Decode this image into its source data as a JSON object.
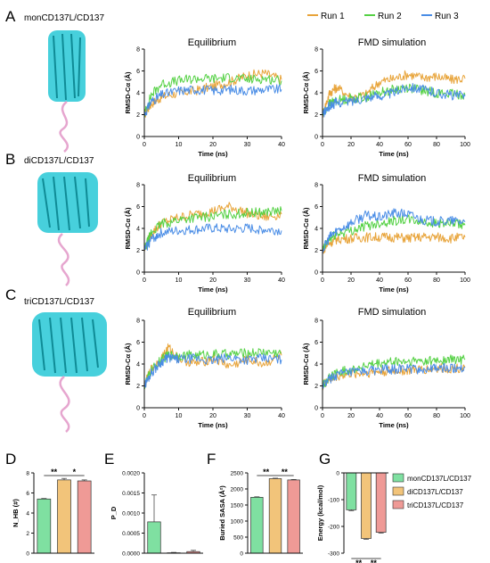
{
  "colors": {
    "run1": "#e8a43a",
    "run2": "#55d145",
    "run3": "#4a8de6",
    "mon": "#7fe0a1",
    "di": "#f2c47a",
    "tri": "#ef9a96",
    "protein": "#27c8d6",
    "loop": "#e6a6cf"
  },
  "legend_top": [
    "Run 1",
    "Run 2",
    "Run 3"
  ],
  "legend_bottom": [
    "monCD137L/CD137",
    "diCD137L/CD137",
    "triCD137L/CD137"
  ],
  "rows": [
    {
      "letter": "A",
      "label": "monCD137L/CD137",
      "eq_title": "Equilibrium",
      "fmd_title": "FMD simulation"
    },
    {
      "letter": "B",
      "label": "diCD137L/CD137",
      "eq_title": "Equilibrium",
      "fmd_title": "FMD simulation"
    },
    {
      "letter": "C",
      "label": "triCD137L/CD137",
      "eq_title": "Equilibrium",
      "fmd_title": "FMD simulation"
    }
  ],
  "chart_data": [
    {
      "id": "A-eq",
      "type": "line",
      "xlabel": "Time (ns)",
      "ylabel": "RMSD-Cα (Å)",
      "xlim": [
        0,
        40
      ],
      "ylim": [
        0,
        8
      ],
      "xticks": [
        0,
        10,
        20,
        30,
        40
      ],
      "yticks": [
        0,
        2,
        4,
        6,
        8
      ],
      "series": [
        {
          "name": "Run 1",
          "x": [
            0,
            2,
            5,
            10,
            15,
            20,
            25,
            30,
            35,
            40
          ],
          "y": [
            2.0,
            3.0,
            3.6,
            4.0,
            4.2,
            4.6,
            5.0,
            5.6,
            5.8,
            5.2
          ]
        },
        {
          "name": "Run 2",
          "x": [
            0,
            2,
            5,
            10,
            15,
            20,
            25,
            30,
            35,
            40
          ],
          "y": [
            2.0,
            3.8,
            4.8,
            5.1,
            5.3,
            5.3,
            5.4,
            5.2,
            5.3,
            5.1
          ]
        },
        {
          "name": "Run 3",
          "x": [
            0,
            2,
            5,
            10,
            15,
            20,
            25,
            30,
            35,
            40
          ],
          "y": [
            2.0,
            3.2,
            3.8,
            4.2,
            4.3,
            4.2,
            4.3,
            4.2,
            4.3,
            4.3
          ]
        }
      ]
    },
    {
      "id": "A-fmd",
      "type": "line",
      "xlabel": "Time (ns)",
      "ylabel": "RMSD-Cα (Å)",
      "xlim": [
        0,
        100
      ],
      "ylim": [
        0,
        8
      ],
      "xticks": [
        0,
        20,
        40,
        60,
        80,
        100
      ],
      "yticks": [
        0,
        2,
        4,
        6,
        8
      ],
      "series": [
        {
          "name": "Run 1",
          "x": [
            0,
            5,
            10,
            20,
            30,
            40,
            50,
            60,
            70,
            80,
            90,
            100
          ],
          "y": [
            2.0,
            4.0,
            4.5,
            3.6,
            3.8,
            5.0,
            5.3,
            5.7,
            5.4,
            5.5,
            5.2,
            5.3
          ]
        },
        {
          "name": "Run 2",
          "x": [
            0,
            5,
            10,
            20,
            30,
            40,
            50,
            60,
            70,
            80,
            90,
            100
          ],
          "y": [
            2.0,
            3.0,
            3.3,
            3.5,
            3.6,
            4.0,
            4.3,
            4.5,
            4.2,
            4.0,
            3.9,
            3.8
          ]
        },
        {
          "name": "Run 3",
          "x": [
            0,
            5,
            10,
            20,
            30,
            40,
            50,
            60,
            70,
            80,
            90,
            100
          ],
          "y": [
            2.0,
            2.8,
            3.1,
            3.2,
            3.6,
            3.7,
            4.0,
            4.6,
            4.3,
            4.0,
            3.8,
            3.7
          ]
        }
      ]
    },
    {
      "id": "B-eq",
      "type": "line",
      "xlabel": "Time (ns)",
      "ylabel": "RMSD-Cα (Å)",
      "xlim": [
        0,
        40
      ],
      "ylim": [
        0,
        8
      ],
      "xticks": [
        0,
        10,
        20,
        30,
        40
      ],
      "yticks": [
        0,
        2,
        4,
        6,
        8
      ],
      "series": [
        {
          "name": "Run 1",
          "x": [
            0,
            2,
            5,
            10,
            15,
            20,
            25,
            30,
            35,
            40
          ],
          "y": [
            2.0,
            3.5,
            4.5,
            5.0,
            5.3,
            5.6,
            6.0,
            5.4,
            5.0,
            5.3
          ]
        },
        {
          "name": "Run 2",
          "x": [
            0,
            2,
            5,
            10,
            15,
            20,
            25,
            30,
            35,
            40
          ],
          "y": [
            2.0,
            3.6,
            4.4,
            4.8,
            5.0,
            5.1,
            5.3,
            5.4,
            5.5,
            5.6
          ]
        },
        {
          "name": "Run 3",
          "x": [
            0,
            2,
            5,
            10,
            15,
            20,
            25,
            30,
            35,
            40
          ],
          "y": [
            2.0,
            3.0,
            3.6,
            3.8,
            3.9,
            4.0,
            3.9,
            4.0,
            3.9,
            3.8
          ]
        }
      ]
    },
    {
      "id": "B-fmd",
      "type": "line",
      "xlabel": "Time (ns)",
      "ylabel": "RMSD-Cα (Å)",
      "xlim": [
        0,
        100
      ],
      "ylim": [
        0,
        8
      ],
      "xticks": [
        0,
        20,
        40,
        60,
        80,
        100
      ],
      "yticks": [
        0,
        2,
        4,
        6,
        8
      ],
      "series": [
        {
          "name": "Run 1",
          "x": [
            0,
            5,
            10,
            20,
            30,
            40,
            50,
            60,
            70,
            80,
            90,
            100
          ],
          "y": [
            2.0,
            2.7,
            3.0,
            3.1,
            3.2,
            3.2,
            3.2,
            3.1,
            3.2,
            3.2,
            3.1,
            3.2
          ]
        },
        {
          "name": "Run 2",
          "x": [
            0,
            5,
            10,
            20,
            30,
            40,
            50,
            60,
            70,
            80,
            90,
            100
          ],
          "y": [
            2.0,
            3.0,
            3.5,
            3.8,
            4.2,
            4.5,
            4.7,
            4.8,
            4.6,
            4.5,
            4.4,
            4.3
          ]
        },
        {
          "name": "Run 3",
          "x": [
            0,
            5,
            10,
            20,
            30,
            40,
            50,
            60,
            70,
            80,
            90,
            100
          ],
          "y": [
            2.0,
            3.2,
            3.8,
            4.5,
            5.2,
            5.0,
            5.4,
            5.3,
            4.8,
            4.6,
            4.7,
            4.6
          ]
        }
      ]
    },
    {
      "id": "C-eq",
      "type": "line",
      "xlabel": "Time (ns)",
      "ylabel": "RMSD-Cα (Å)",
      "xlim": [
        0,
        40
      ],
      "ylim": [
        0,
        8
      ],
      "xticks": [
        0,
        10,
        20,
        30,
        40
      ],
      "yticks": [
        0,
        2,
        4,
        6,
        8
      ],
      "series": [
        {
          "name": "Run 1",
          "x": [
            0,
            2,
            5,
            7,
            10,
            15,
            20,
            25,
            30,
            35,
            40
          ],
          "y": [
            2.0,
            3.5,
            4.5,
            5.5,
            4.5,
            4.0,
            4.5,
            3.8,
            4.4,
            4.0,
            4.8
          ]
        },
        {
          "name": "Run 2",
          "x": [
            0,
            2,
            5,
            7,
            10,
            15,
            20,
            25,
            30,
            35,
            40
          ],
          "y": [
            2.0,
            3.4,
            4.4,
            4.8,
            4.8,
            4.8,
            4.9,
            4.9,
            5.0,
            5.1,
            5.0
          ]
        },
        {
          "name": "Run 3",
          "x": [
            0,
            2,
            5,
            7,
            10,
            15,
            20,
            25,
            30,
            35,
            40
          ],
          "y": [
            2.0,
            3.2,
            4.2,
            4.6,
            4.4,
            4.5,
            4.3,
            4.6,
            4.4,
            4.5,
            4.4
          ]
        }
      ]
    },
    {
      "id": "C-fmd",
      "type": "line",
      "xlabel": "Time (ns)",
      "ylabel": "RMSD-Cα (Å)",
      "xlim": [
        0,
        100
      ],
      "ylim": [
        0,
        8
      ],
      "xticks": [
        0,
        20,
        40,
        60,
        80,
        100
      ],
      "yticks": [
        0,
        2,
        4,
        6,
        8
      ],
      "series": [
        {
          "name": "Run 1",
          "x": [
            0,
            5,
            10,
            20,
            30,
            40,
            50,
            60,
            70,
            80,
            90,
            100
          ],
          "y": [
            2.0,
            2.6,
            2.9,
            3.1,
            3.2,
            3.3,
            3.4,
            3.4,
            3.5,
            3.6,
            3.6,
            3.7
          ]
        },
        {
          "name": "Run 2",
          "x": [
            0,
            5,
            10,
            20,
            30,
            40,
            50,
            60,
            70,
            80,
            90,
            100
          ],
          "y": [
            2.0,
            2.8,
            3.2,
            3.5,
            3.8,
            4.0,
            4.2,
            4.2,
            4.3,
            4.3,
            4.4,
            4.4
          ]
        },
        {
          "name": "Run 3",
          "x": [
            0,
            5,
            10,
            20,
            30,
            40,
            50,
            60,
            70,
            80,
            90,
            100
          ],
          "y": [
            2.0,
            2.6,
            3.0,
            3.2,
            3.3,
            3.5,
            3.5,
            3.6,
            3.5,
            3.6,
            3.6,
            3.7
          ]
        }
      ]
    },
    {
      "id": "D",
      "letter": "D",
      "type": "bar",
      "ylabel": "N_HB (#)",
      "ylim": [
        0,
        8
      ],
      "yticks": [
        0,
        2,
        4,
        6,
        8
      ],
      "values": [
        5.4,
        7.3,
        7.2
      ],
      "errors": [
        0.05,
        0.15,
        0.1
      ],
      "significance": [
        {
          "from": 0,
          "to": 1,
          "label": "**"
        },
        {
          "from": 1,
          "to": 2,
          "label": "*"
        }
      ]
    },
    {
      "id": "E",
      "letter": "E",
      "type": "bar",
      "ylabel": "P_D",
      "ylim": [
        0,
        0.002
      ],
      "yticks": [
        0,
        0.0005,
        0.001,
        0.0015,
        0.002
      ],
      "ytick_labels": [
        "0.0000",
        "0.0005",
        "0.0010",
        "0.0015",
        "0.0020"
      ],
      "values": [
        0.00078,
        1e-05,
        4e-05
      ],
      "errors": [
        0.00067,
        1e-05,
        3e-05
      ],
      "significance": []
    },
    {
      "id": "F",
      "letter": "F",
      "type": "bar",
      "ylabel": "Buried SASA (Å²)",
      "ylim": [
        0,
        2500
      ],
      "yticks": [
        0,
        500,
        1000,
        1500,
        2000,
        2500
      ],
      "values": [
        1740,
        2320,
        2280
      ],
      "errors": [
        15,
        15,
        15
      ],
      "significance": [
        {
          "from": 0,
          "to": 1,
          "label": "**"
        },
        {
          "from": 1,
          "to": 2,
          "label": "**"
        }
      ]
    },
    {
      "id": "G",
      "letter": "G",
      "type": "bar",
      "ylabel": "Energy (kcal/mol)",
      "ylim": [
        -300,
        0
      ],
      "yticks": [
        -300,
        -200,
        -100,
        0
      ],
      "values": [
        -138,
        -245,
        -222
      ],
      "errors": [
        3,
        3,
        3
      ],
      "significance": [
        {
          "from": 0,
          "to": 1,
          "label": "**"
        },
        {
          "from": 1,
          "to": 2,
          "label": "**"
        }
      ]
    }
  ]
}
